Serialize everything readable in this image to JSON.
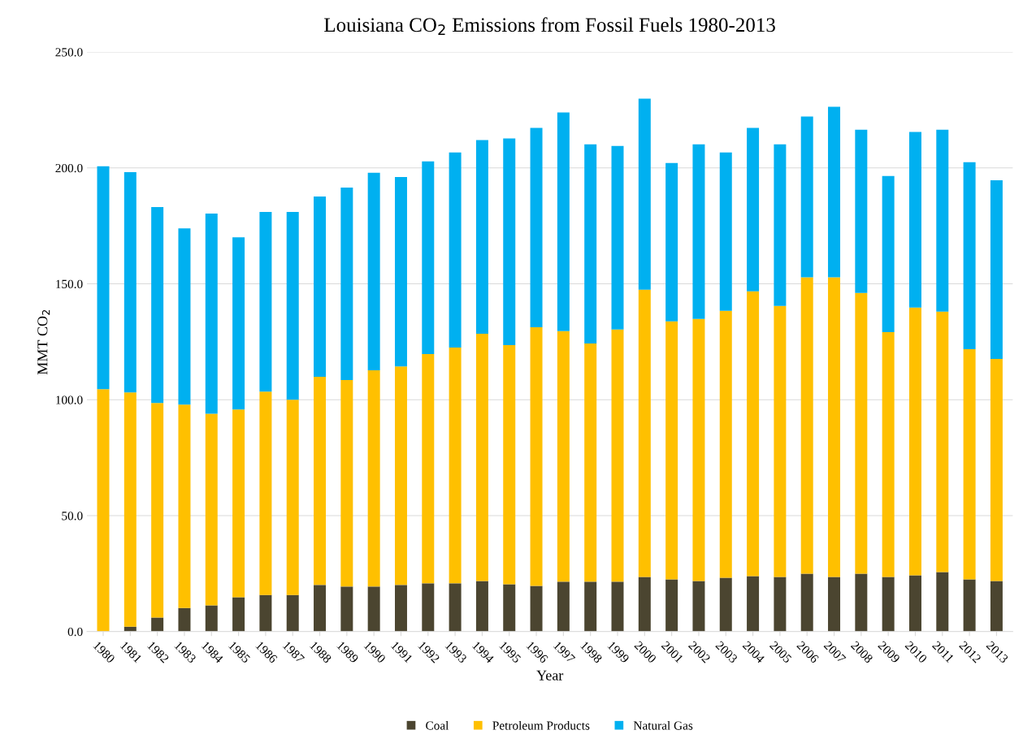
{
  "chart_data": {
    "type": "bar",
    "title": "Louisiana CO$_{2}$ Emissions from Fossil Fuels 1980-2013",
    "xlabel": "Year",
    "ylabel": "MMT CO$_{2}$",
    "categories": [
      "1980",
      "1981",
      "1982",
      "1983",
      "1984",
      "1985",
      "1986",
      "1987",
      "1988",
      "1989",
      "1990",
      "1991",
      "1992",
      "1993",
      "1994",
      "1995",
      "1996",
      "1997",
      "1998",
      "1999",
      "2000",
      "2001",
      "2002",
      "2003",
      "2004",
      "2005",
      "2006",
      "2007",
      "2008",
      "2009",
      "2010",
      "2011",
      "2012",
      "2013"
    ],
    "stacked": true,
    "series": [
      {
        "name": "Coal",
        "color": "#4b4530",
        "values": [
          0,
          2.1,
          6.0,
          10.2,
          11.3,
          14.8,
          15.8,
          15.8,
          20.1,
          19.4,
          19.4,
          20.1,
          20.8,
          20.8,
          21.8,
          20.4,
          19.7,
          21.5,
          21.5,
          21.5,
          23.6,
          22.5,
          21.8,
          23.2,
          23.9,
          23.6,
          25.0,
          23.6,
          25.0,
          23.6,
          24.3,
          25.7,
          22.5,
          21.8
        ]
      },
      {
        "name": "Petroleum Products",
        "color": "#ffc000",
        "values": [
          104.6,
          101.1,
          92.6,
          87.7,
          82.7,
          81.0,
          87.7,
          84.2,
          89.8,
          89.1,
          93.3,
          94.3,
          98.9,
          101.7,
          106.7,
          103.2,
          111.6,
          108.1,
          102.8,
          108.8,
          123.9,
          111.3,
          113.1,
          115.2,
          122.9,
          116.9,
          127.8,
          129.2,
          121.1,
          105.6,
          115.5,
          112.3,
          99.3,
          95.8
        ]
      },
      {
        "name": "Natural Gas",
        "color": "#00b0f0",
        "values": [
          96.1,
          95.0,
          84.5,
          76.0,
          86.3,
          74.3,
          77.5,
          81.0,
          77.8,
          83.0,
          85.2,
          81.7,
          83.1,
          84.2,
          83.5,
          89.1,
          86.0,
          94.3,
          85.9,
          79.2,
          82.4,
          68.3,
          75.3,
          68.3,
          70.5,
          69.7,
          69.4,
          73.6,
          70.4,
          67.3,
          75.7,
          78.5,
          80.7,
          77.1
        ]
      }
    ],
    "ylim": [
      0,
      250
    ],
    "yticks": [
      {
        "value": 0,
        "label": "0.0"
      },
      {
        "value": 50,
        "label": "50.0"
      },
      {
        "value": 100,
        "label": "100.0"
      },
      {
        "value": 150,
        "label": "150.0"
      },
      {
        "value": 200,
        "label": "200.0"
      },
      {
        "value": 250,
        "label": "250.0"
      }
    ],
    "grid": "y",
    "legend": "bottom"
  }
}
